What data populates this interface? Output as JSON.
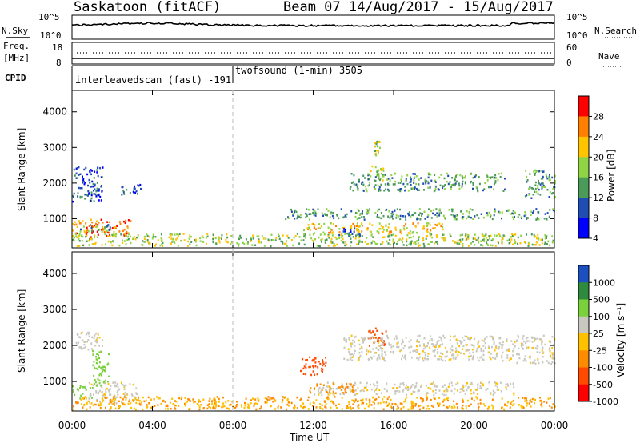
{
  "header": {
    "station": "Saskatoon (fitACF)",
    "beam_dates": "Beam 07  14/Aug/2017 - 15/Aug/2017"
  },
  "noise_panel": {
    "left_label": "N.Sky",
    "left_ticks": [
      "10^5",
      "10^0"
    ],
    "right_label": "N.Search",
    "right_ticks": [
      "10^5",
      "10^0"
    ]
  },
  "freq_panel": {
    "left_label_1": "Freq.",
    "left_label_2": "[MHz]",
    "left_ticks": [
      "18",
      "8"
    ],
    "right_label": "Nave",
    "right_ticks": [
      "60",
      "0"
    ]
  },
  "cpid_panel": {
    "label": "CPID",
    "modes": [
      {
        "text": "interleavedscan (fast) -191",
        "start_hour": 0
      },
      {
        "text": "twofsound (1-min) 3505",
        "start_hour": 8
      }
    ]
  },
  "chart_data": [
    {
      "type": "heatmap",
      "name": "power",
      "ylabel": "Slant Range [km]",
      "ylim": [
        180,
        4600
      ],
      "yticks": [
        1000,
        2000,
        3000,
        4000
      ],
      "xlim": [
        0,
        24
      ],
      "colorbar": {
        "label": "Power [dB]",
        "ticks": [
          "28",
          "24",
          "20",
          "16",
          "12",
          "8",
          "4"
        ],
        "colors": [
          "#ff0000",
          "#ff7f00",
          "#ffc300",
          "#8fd444",
          "#4a9a5a",
          "#1f4db3",
          "#0000ff"
        ]
      },
      "echo_regions": [
        {
          "x": [
            0.0,
            2.9
          ],
          "y": [
            500,
            1000
          ],
          "level": 5
        },
        {
          "x": [
            0.2,
            1.9
          ],
          "y": [
            650,
            850
          ],
          "level": 2
        },
        {
          "x": [
            0.0,
            1.5
          ],
          "y": [
            1500,
            2500
          ],
          "level": 1
        },
        {
          "x": [
            2.4,
            3.4
          ],
          "y": [
            1700,
            2000
          ],
          "level": 1
        },
        {
          "x": [
            0.0,
            24.0
          ],
          "y": [
            250,
            600
          ],
          "level": 3
        },
        {
          "x": [
            10.5,
            24.0
          ],
          "y": [
            1000,
            1300
          ],
          "level": 2
        },
        {
          "x": [
            11.5,
            18.5
          ],
          "y": [
            600,
            900
          ],
          "level": 4
        },
        {
          "x": [
            13.2,
            14.4
          ],
          "y": [
            550,
            750
          ],
          "level": 1
        },
        {
          "x": [
            14.8,
            15.5
          ],
          "y": [
            2100,
            2500
          ],
          "level": 3
        },
        {
          "x": [
            15.0,
            15.3
          ],
          "y": [
            2800,
            3200
          ],
          "level": 3
        },
        {
          "x": [
            13.8,
            21.5
          ],
          "y": [
            1800,
            2300
          ],
          "level": 2
        },
        {
          "x": [
            22.5,
            24.0
          ],
          "y": [
            1600,
            2400
          ],
          "level": 2
        }
      ]
    },
    {
      "type": "heatmap",
      "name": "velocity",
      "ylabel": "Slant Range [km]",
      "xlabel": "Time UT",
      "ylim": [
        180,
        4600
      ],
      "yticks": [
        1000,
        2000,
        3000,
        4000
      ],
      "xlim": [
        0,
        24
      ],
      "xticks": [
        "00:00",
        "04:00",
        "08:00",
        "12:00",
        "16:00",
        "20:00",
        "00:00"
      ],
      "colorbar": {
        "label": "Velocity [m s⁻¹]",
        "ticks": [
          "1000",
          "500",
          "100",
          "25",
          "-25",
          "-100",
          "-500",
          "-1000"
        ],
        "colors": [
          "#1c4fc0",
          "#2e8b3d",
          "#7bd13c",
          "#c8c8c0",
          "#ffc000",
          "#ff8c00",
          "#ff4a00",
          "#ff0000"
        ]
      },
      "echo_regions": [
        {
          "x": [
            0.0,
            1.0
          ],
          "y": [
            550,
            900
          ],
          "v": 100
        },
        {
          "x": [
            0.8,
            3.2
          ],
          "y": [
            400,
            1000
          ],
          "v": 0
        },
        {
          "x": [
            1.0,
            1.8
          ],
          "y": [
            900,
            1900
          ],
          "v": 100
        },
        {
          "x": [
            0.0,
            1.5
          ],
          "y": [
            1900,
            2400
          ],
          "v": 0
        },
        {
          "x": [
            0.0,
            24.0
          ],
          "y": [
            250,
            600
          ],
          "v": -100
        },
        {
          "x": [
            12.0,
            22.0
          ],
          "y": [
            650,
            1000
          ],
          "v": 0
        },
        {
          "x": [
            11.8,
            14.0
          ],
          "y": [
            700,
            1000
          ],
          "v": -200
        },
        {
          "x": [
            11.3,
            12.6
          ],
          "y": [
            1200,
            1700
          ],
          "v": -500
        },
        {
          "x": [
            14.7,
            15.6
          ],
          "y": [
            2000,
            2500
          ],
          "v": -500
        },
        {
          "x": [
            13.5,
            22.0
          ],
          "y": [
            1600,
            2300
          ],
          "v": 0
        },
        {
          "x": [
            22.0,
            24.0
          ],
          "y": [
            1500,
            2300
          ],
          "v": 0
        }
      ]
    }
  ]
}
